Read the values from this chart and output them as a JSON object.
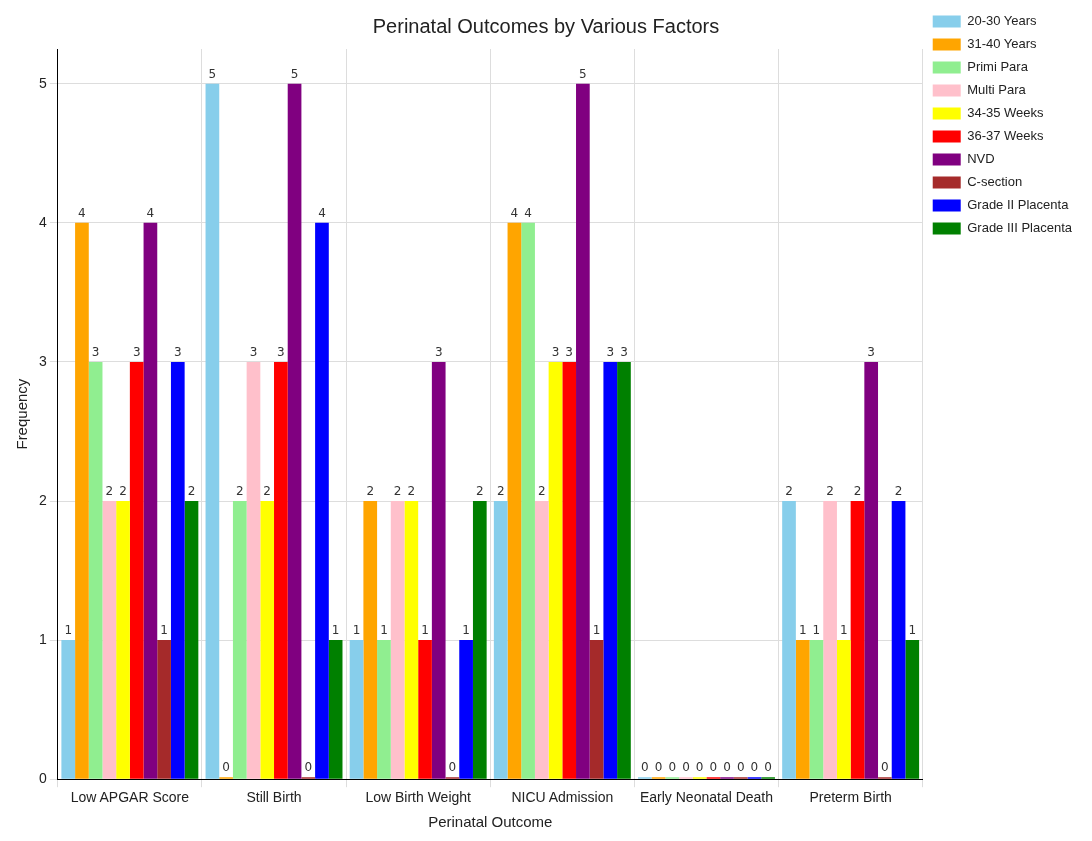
{
  "chart_data": {
    "type": "bar",
    "title": "Perinatal Outcomes by Various Factors",
    "xlabel": "Perinatal Outcome",
    "ylabel": "Frequency",
    "categories": [
      "Low APGAR Score",
      "Still Birth",
      "Low Birth Weight",
      "NICU Admission",
      "Early Neonatal Death",
      "Preterm Birth"
    ],
    "series": [
      {
        "name": "20-30 Years",
        "color": "#87ceeb",
        "values": [
          1,
          5,
          1,
          2,
          0,
          2
        ]
      },
      {
        "name": "31-40 Years",
        "color": "#ffa500",
        "values": [
          4,
          0,
          2,
          4,
          0,
          1
        ]
      },
      {
        "name": "Primi Para",
        "color": "#90ee90",
        "values": [
          3,
          2,
          1,
          4,
          0,
          1
        ]
      },
      {
        "name": "Multi Para",
        "color": "#ffc0cb",
        "values": [
          2,
          3,
          2,
          2,
          0,
          2
        ]
      },
      {
        "name": "34-35 Weeks",
        "color": "#ffff00",
        "values": [
          2,
          2,
          2,
          3,
          0,
          1
        ]
      },
      {
        "name": "36-37 Weeks",
        "color": "#ff0000",
        "values": [
          3,
          3,
          1,
          3,
          0,
          2
        ]
      },
      {
        "name": "NVD",
        "color": "#800080",
        "values": [
          4,
          5,
          3,
          5,
          0,
          3
        ]
      },
      {
        "name": "C-section",
        "color": "#a52a2a",
        "values": [
          1,
          0,
          0,
          1,
          0,
          0
        ]
      },
      {
        "name": "Grade II Placenta",
        "color": "#0000ff",
        "values": [
          3,
          4,
          1,
          3,
          0,
          2
        ]
      },
      {
        "name": "Grade III Placenta",
        "color": "#008000",
        "values": [
          2,
          1,
          2,
          3,
          0,
          1
        ]
      }
    ],
    "ylim": [
      0,
      5.25
    ],
    "yticks": [
      0,
      1,
      2,
      3,
      4,
      5
    ],
    "grid": true,
    "legend": "top right",
    "data_labels": true
  }
}
